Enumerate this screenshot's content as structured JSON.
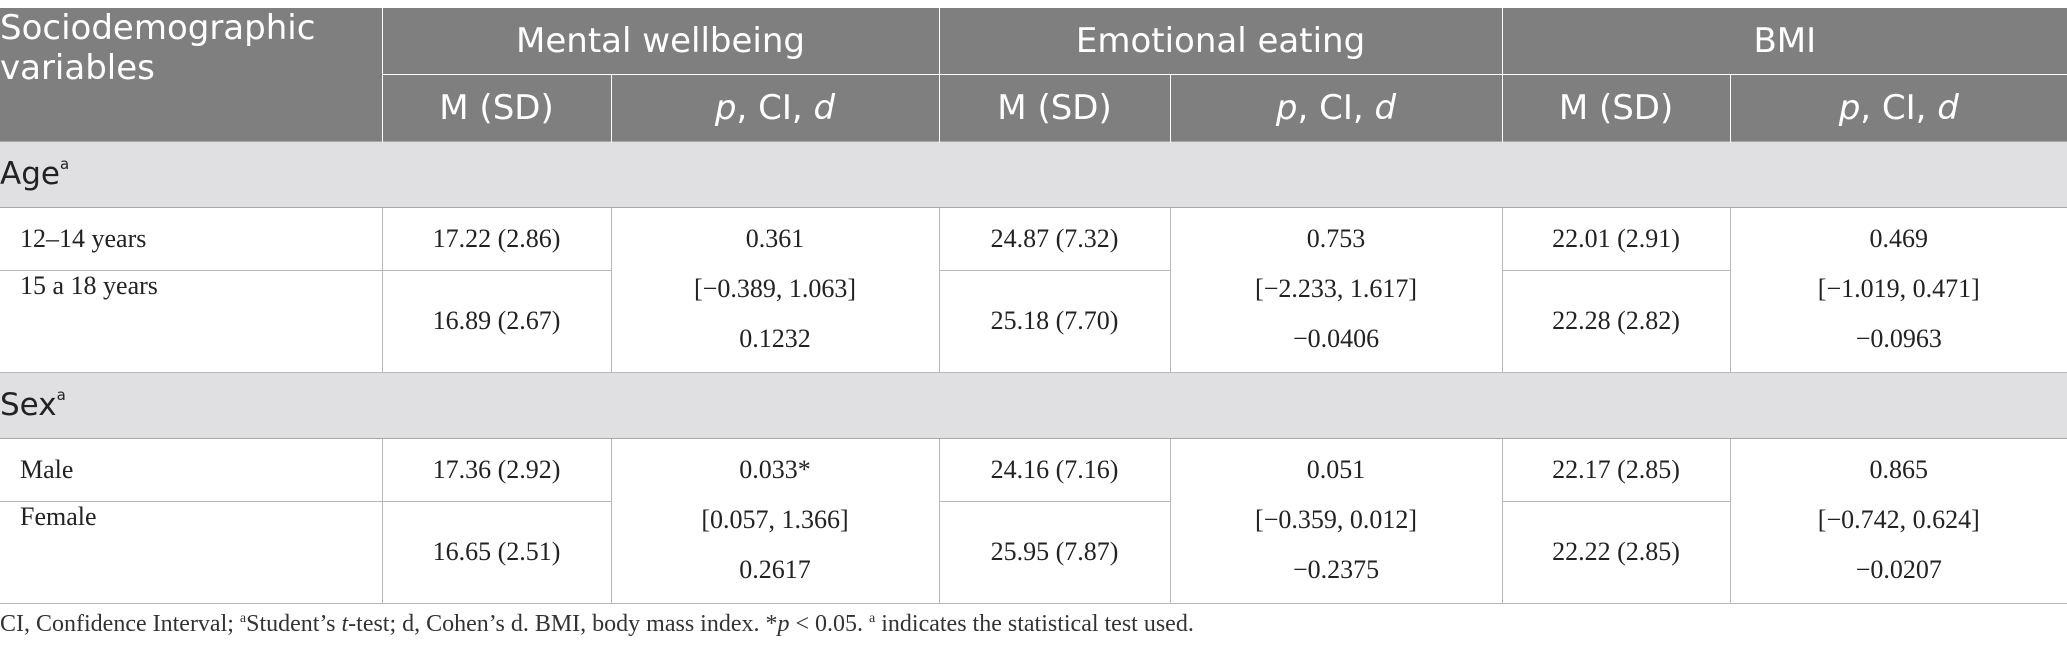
{
  "table": {
    "header": {
      "first_col": "Sociodemographic variables",
      "groups": [
        "Mental wellbeing",
        "Emotional eating",
        "BMI"
      ],
      "sub_m": "M (SD)",
      "sub_p_italic": "p",
      "sub_p_rest": ", CI, ",
      "sub_d_italic": "d"
    },
    "sections": [
      {
        "title": "Age",
        "title_sup": "a",
        "rows": [
          {
            "label": "12–14 years",
            "mw_m": "17.22 (2.86)",
            "ee_m": "24.87 (7.32)",
            "bmi_m": "22.01 (2.91)"
          },
          {
            "label": "15 a 18 years",
            "mw_m": "16.89 (2.67)",
            "ee_m": "25.18 (7.70)",
            "bmi_m": "22.28 (2.82)"
          }
        ],
        "mw_stats": [
          "0.361",
          "[−0.389, 1.063]",
          "0.1232"
        ],
        "ee_stats": [
          "0.753",
          "[−2.233, 1.617]",
          "−0.0406"
        ],
        "bmi_stats": [
          "0.469",
          "[−1.019, 0.471]",
          "−0.0963"
        ]
      },
      {
        "title": "Sex",
        "title_sup": "a",
        "rows": [
          {
            "label": "Male",
            "mw_m": "17.36 (2.92)",
            "ee_m": "24.16 (7.16)",
            "bmi_m": "22.17 (2.85)"
          },
          {
            "label": "Female",
            "mw_m": "16.65 (2.51)",
            "ee_m": "25.95 (7.87)",
            "bmi_m": "22.22 (2.85)"
          }
        ],
        "mw_stats": [
          "0.033*",
          "[0.057, 1.366]",
          "0.2617"
        ],
        "ee_stats": [
          "0.051",
          "[−0.359, 0.012]",
          "−0.2375"
        ],
        "bmi_stats": [
          "0.865",
          "[−0.742, 0.624]",
          "−0.0207"
        ]
      }
    ]
  },
  "footnote": {
    "part1": "CI, Confidence Interval; ",
    "sup1": "a",
    "part2": "Student’s ",
    "t_italic": "t",
    "part3": "-test; d, Cohen’s d. BMI, body mass index. *",
    "p_italic": "p",
    "part4": " < 0.05. ",
    "sup2": "a",
    "part5": " indicates the statistical test used."
  }
}
